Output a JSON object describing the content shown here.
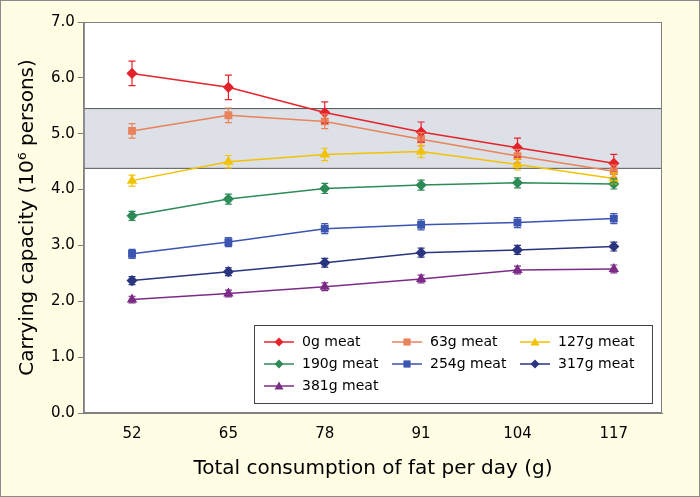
{
  "chart_data": {
    "type": "line",
    "x_label": "Total consumption of fat per day (g)",
    "y_label": "Carrying capacity (10⁶ persons)",
    "categories": [
      "52",
      "65",
      "78",
      "91",
      "104",
      "117"
    ],
    "ylim": [
      0,
      7
    ],
    "yticks": [
      {
        "value": 0,
        "label": "0.0"
      },
      {
        "value": 1,
        "label": "1.0"
      },
      {
        "value": 2,
        "label": "2.0"
      },
      {
        "value": 3,
        "label": "3.0"
      },
      {
        "value": 4,
        "label": "4.0"
      },
      {
        "value": 5,
        "label": "5.0"
      },
      {
        "value": 6,
        "label": "6.0"
      },
      {
        "value": 7,
        "label": "7.0"
      }
    ],
    "grid": false,
    "legend": "lower right",
    "line_style": "solid",
    "shaded_range": [
      4.38,
      5.45
    ],
    "series": [
      {
        "name": "0g meat",
        "color": "#e5232b",
        "marker": "diamond",
        "values": [
          6.08,
          5.83,
          5.38,
          5.03,
          4.75,
          4.47
        ],
        "errors": [
          0.22,
          0.22,
          0.19,
          0.18,
          0.17,
          0.16
        ]
      },
      {
        "name": "63g meat",
        "color": "#e8835c",
        "marker": "square",
        "values": [
          5.05,
          5.33,
          5.22,
          4.9,
          4.6,
          4.33
        ],
        "errors": [
          0.13,
          0.13,
          0.13,
          0.12,
          0.12,
          0.11
        ]
      },
      {
        "name": "127g meat",
        "color": "#f2c200",
        "marker": "triangle",
        "values": [
          4.16,
          4.5,
          4.63,
          4.68,
          4.45,
          4.2
        ],
        "errors": [
          0.1,
          0.11,
          0.11,
          0.11,
          0.1,
          0.1
        ]
      },
      {
        "name": "190g meat",
        "color": "#2e8b57",
        "marker": "diamond",
        "values": [
          3.53,
          3.83,
          4.02,
          4.08,
          4.12,
          4.1
        ],
        "errors": [
          0.08,
          0.09,
          0.09,
          0.09,
          0.09,
          0.09
        ]
      },
      {
        "name": "254g meat",
        "color": "#3b55b0",
        "marker": "square",
        "values": [
          2.85,
          3.06,
          3.3,
          3.37,
          3.41,
          3.48
        ],
        "errors": [
          0.08,
          0.08,
          0.09,
          0.09,
          0.09,
          0.09
        ]
      },
      {
        "name": "317g meat",
        "color": "#2a347f",
        "marker": "diamond",
        "values": [
          2.37,
          2.53,
          2.69,
          2.87,
          2.92,
          2.98
        ],
        "errors": [
          0.07,
          0.07,
          0.08,
          0.08,
          0.08,
          0.08
        ]
      },
      {
        "name": "381g meat",
        "color": "#7b2c86",
        "marker": "triangle",
        "values": [
          2.03,
          2.14,
          2.26,
          2.4,
          2.56,
          2.58
        ],
        "errors": [
          0.06,
          0.06,
          0.07,
          0.07,
          0.07,
          0.07
        ]
      }
    ]
  }
}
